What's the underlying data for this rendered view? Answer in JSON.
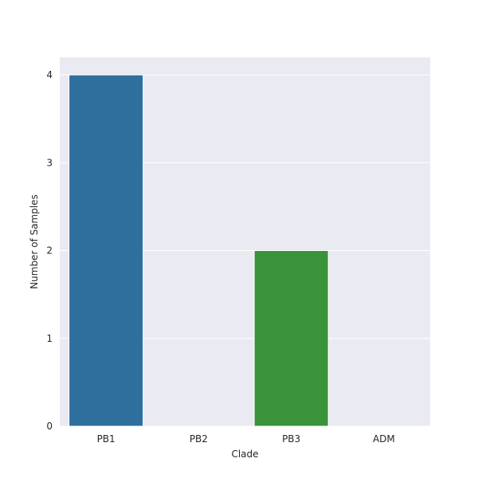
{
  "chart_data": {
    "type": "bar",
    "title": "",
    "xlabel": "Clade",
    "ylabel": "Number of Samples",
    "categories": [
      "PB1",
      "PB2",
      "PB3",
      "ADM"
    ],
    "values": [
      4,
      0,
      2,
      0
    ],
    "ylim": [
      0,
      4.2
    ],
    "yticks": [
      0,
      1,
      2,
      3,
      4
    ],
    "colors": [
      "#2e6f9e",
      "#e1812c",
      "#3a923a",
      "#c03d3e"
    ],
    "grid": true,
    "background": "#eaeaf2",
    "legend": "none"
  }
}
